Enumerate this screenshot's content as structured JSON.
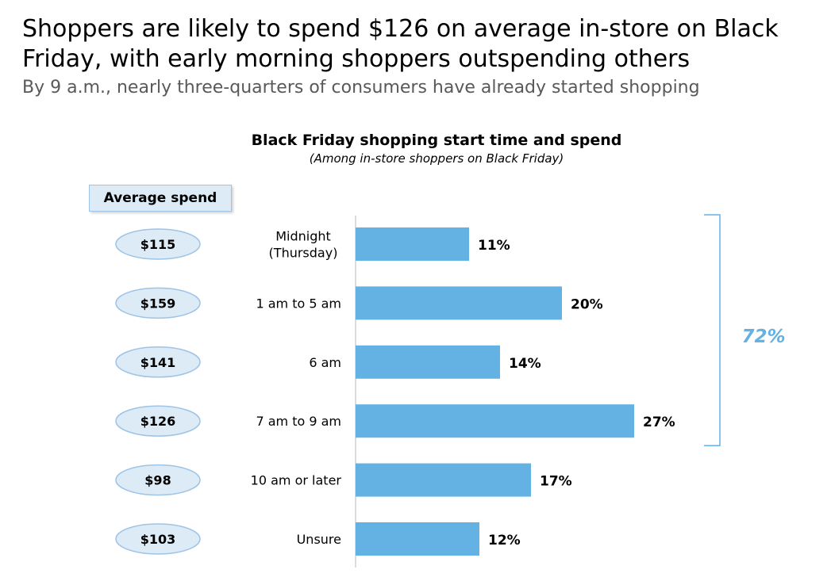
{
  "headline": "Shoppers are likely to spend $126 on average in-store on Black Friday, with early morning shoppers outspending others",
  "subheadline": "By 9 a.m., nearly three-quarters of consumers have already started shopping",
  "average_spend_header": "Average spend",
  "colors": {
    "bar": "#63b2e3",
    "oval_fill": "#ddebf7",
    "oval_border": "#9dc3e6",
    "bracket": "#63b2e3",
    "bracket_text": "#63b2e3",
    "axis": "#d0d0d0"
  },
  "bracket_label": "72%",
  "chart_data": {
    "type": "bar",
    "orientation": "horizontal",
    "title": "Black Friday shopping start time and spend",
    "subtitle": "(Among in-store shoppers on Black Friday)",
    "categories": [
      [
        "Midnight",
        "(Thursday)"
      ],
      [
        "1 am to 5 am"
      ],
      [
        "6 am"
      ],
      [
        "7 am to 9 am"
      ],
      [
        "10 am or later"
      ],
      [
        "Unsure"
      ]
    ],
    "values": [
      11,
      20,
      14,
      27,
      17,
      12
    ],
    "value_labels": [
      "11%",
      "20%",
      "14%",
      "27%",
      "17%",
      "12%"
    ],
    "average_spend": [
      "$115",
      "$159",
      "$141",
      "$126",
      "$98",
      "$103"
    ],
    "xlim": [
      0,
      30
    ],
    "bracket": {
      "from_index": 0,
      "to_index": 3,
      "label": "72%"
    }
  }
}
